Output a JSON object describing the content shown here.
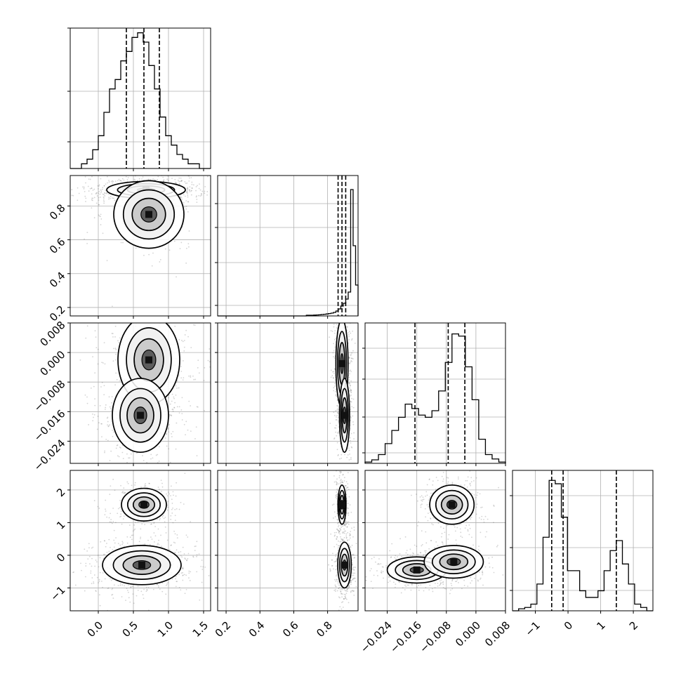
{
  "chart_data": {
    "type": "corner",
    "grid": true,
    "params": [
      {
        "range": [
          -0.4,
          1.6
        ],
        "ticks": [
          "0.0",
          "0.5",
          "1.0",
          "1.5"
        ],
        "tick_values": [
          0.0,
          0.5,
          1.0,
          1.5
        ],
        "quantiles": [
          0.4,
          0.65,
          0.87
        ],
        "hist": [
          0,
          0,
          1,
          2,
          4,
          7,
          12,
          17,
          19,
          23,
          25,
          28,
          29,
          27,
          22,
          17,
          11,
          7,
          5,
          3,
          2,
          1,
          1,
          0,
          0
        ],
        "hist_max": 30,
        "hist_yticks": [
          0.19,
          0.55,
          1.0
        ]
      },
      {
        "range": [
          0.15,
          0.98
        ],
        "ticks": [
          "0.2",
          "0.4",
          "0.6",
          "0.8"
        ],
        "tick_values": [
          0.2,
          0.4,
          0.6,
          0.8
        ],
        "quantiles": [
          0.862,
          0.885,
          0.907
        ],
        "hist": [
          0,
          0,
          0,
          0,
          0,
          0,
          0,
          0,
          0,
          0,
          0,
          0,
          0,
          0,
          0,
          0,
          0,
          0,
          0,
          0,
          0,
          0,
          0,
          0,
          0,
          0,
          0,
          0,
          0,
          0,
          0,
          0,
          0,
          0,
          0,
          0,
          0.5,
          0.5,
          0.5,
          0.6,
          0.7,
          0.8,
          1,
          1.2,
          1.4,
          1.7,
          2,
          2.5,
          3.5,
          5,
          7,
          9,
          12,
          17,
          90,
          50,
          22
        ],
        "hist_max": 100,
        "hist_yticks": [
          0.075,
          0.38,
          0.63,
          0.8
        ]
      },
      {
        "range": [
          -0.03,
          0.008
        ],
        "ticks": [
          "−0.024",
          "−0.016",
          "−0.008",
          "0.000",
          "0.008"
        ],
        "tick_values": [
          -0.024,
          -0.016,
          -0.008,
          0.0,
          0.008
        ],
        "quantiles": [
          -0.0165,
          -0.0075,
          -0.003
        ],
        "hist": [
          0.3,
          0.8,
          2,
          4.5,
          7.5,
          10.5,
          13.5,
          12.5,
          11,
          10.5,
          12,
          16.5,
          23,
          29.5,
          29,
          22,
          14.5,
          5.5,
          2,
          1,
          0.3
        ],
        "hist_max": 32,
        "hist_yticks": [
          0.075,
          0.33,
          0.6,
          0.82
        ]
      },
      {
        "range": [
          -1.7,
          2.6
        ],
        "ticks": [
          "−1",
          "0",
          "1",
          "2"
        ],
        "tick_values": [
          -1,
          0,
          1,
          2
        ],
        "quantiles": [
          -0.5,
          -0.15,
          1.48
        ],
        "hist": [
          0,
          0.3,
          0.5,
          1,
          4,
          11,
          19.5,
          19,
          14,
          6,
          6,
          3,
          2,
          2,
          3,
          6,
          9,
          10.5,
          7,
          4,
          1,
          0.5,
          0
        ],
        "hist_max": 21,
        "hist_yticks": [
          0.145,
          0.45,
          0.82
        ]
      }
    ],
    "y_axis_ticks": {
      "row1": [
        "0.2",
        "0.4",
        "0.6",
        "0.8"
      ],
      "row2": [
        "−0.024",
        "−0.016",
        "−0.008",
        "0.000",
        "0.008"
      ],
      "row3": [
        "−1",
        "0",
        "1",
        "2"
      ]
    },
    "blobs": [
      {
        "pair": [
          0,
          1
        ],
        "modes": [
          {
            "cx": 0.68,
            "cy": 0.895,
            "sx": 0.28,
            "sy": 0.025,
            "w": 0.8
          },
          {
            "cx": 0.72,
            "cy": 0.75,
            "sx": 0.25,
            "sy": 0.1,
            "w": 0.2
          }
        ]
      },
      {
        "pair": [
          0,
          2
        ],
        "modes": [
          {
            "cx": 0.72,
            "cy": -0.002,
            "sx": 0.22,
            "sy": 0.006,
            "w": 0.55
          },
          {
            "cx": 0.6,
            "cy": -0.017,
            "sx": 0.2,
            "sy": 0.005,
            "w": 0.45
          }
        ]
      },
      {
        "pair": [
          1,
          2
        ],
        "modes": [
          {
            "cx": 0.885,
            "cy": -0.003,
            "sx": 0.018,
            "sy": 0.006,
            "w": 0.6
          },
          {
            "cx": 0.9,
            "cy": -0.017,
            "sx": 0.015,
            "sy": 0.005,
            "w": 0.4
          }
        ]
      },
      {
        "pair": [
          0,
          3
        ],
        "modes": [
          {
            "cx": 0.62,
            "cy": -0.3,
            "sx": 0.28,
            "sy": 0.3,
            "w": 0.62
          },
          {
            "cx": 0.65,
            "cy": 1.55,
            "sx": 0.16,
            "sy": 0.25,
            "w": 0.38
          }
        ]
      },
      {
        "pair": [
          1,
          3
        ],
        "modes": [
          {
            "cx": 0.9,
            "cy": -0.3,
            "sx": 0.02,
            "sy": 0.35,
            "w": 0.62
          },
          {
            "cx": 0.885,
            "cy": 1.55,
            "sx": 0.012,
            "sy": 0.3,
            "w": 0.38
          }
        ]
      },
      {
        "pair": [
          2,
          3
        ],
        "modes": [
          {
            "cx": -0.016,
            "cy": -0.45,
            "sx": 0.004,
            "sy": 0.2,
            "w": 0.35
          },
          {
            "cx": -0.006,
            "cy": -0.2,
            "sx": 0.004,
            "sy": 0.25,
            "w": 0.27
          },
          {
            "cx": -0.0065,
            "cy": 1.55,
            "sx": 0.003,
            "sy": 0.3,
            "w": 0.38
          }
        ]
      }
    ]
  }
}
